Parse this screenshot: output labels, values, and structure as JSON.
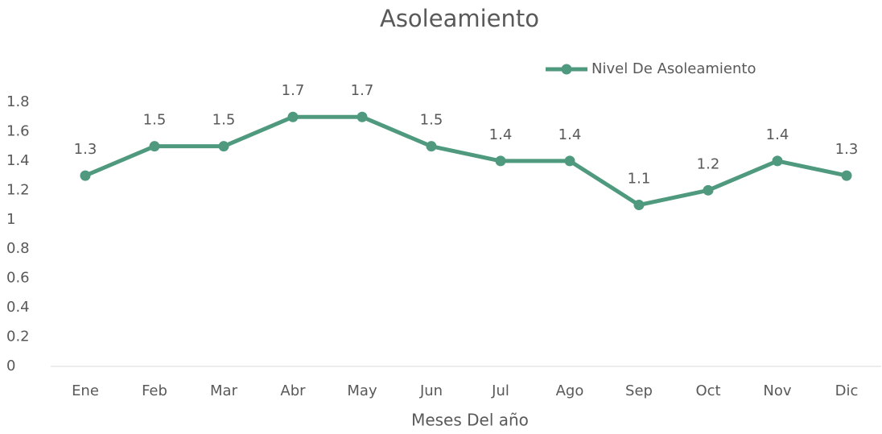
{
  "chart_data": {
    "type": "line",
    "title": "Asoleamiento",
    "x_label": "Meses Del año",
    "categories": [
      "Ene",
      "Feb",
      "Mar",
      "Abr",
      "May",
      "Jun",
      "Jul",
      "Ago",
      "Sep",
      "Oct",
      "Nov",
      "Dic"
    ],
    "series": [
      {
        "name": "Nivel De Asoleamiento",
        "color": "#4f9a7f",
        "values": [
          1.3,
          1.5,
          1.5,
          1.7,
          1.7,
          1.5,
          1.4,
          1.4,
          1.1,
          1.2,
          1.4,
          1.3
        ]
      }
    ],
    "ylim": [
      0,
      1.8
    ],
    "yticks": [
      0,
      0.2,
      0.4,
      0.6,
      0.8,
      1,
      1.2,
      1.4,
      1.6,
      1.8
    ],
    "grid": false,
    "legend": "top-right",
    "data_labels": true
  }
}
